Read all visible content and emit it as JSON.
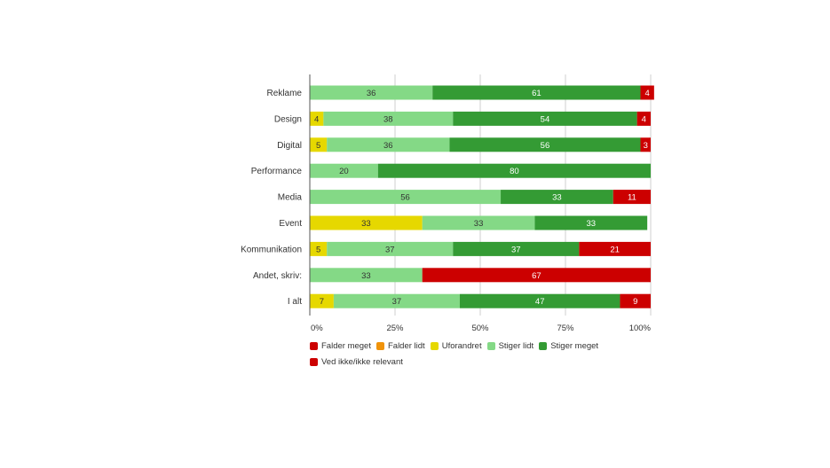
{
  "chart_data": {
    "type": "bar",
    "orientation": "horizontal",
    "stacked": true,
    "percent_stacked": true,
    "categories": [
      "Reklame",
      "Design",
      "Digital",
      "Performance",
      "Media",
      "Event",
      "Kommunikation",
      "Andet, skriv:",
      "I alt"
    ],
    "series": [
      {
        "name": "Falder meget",
        "color": "#cc0000",
        "values": [
          0,
          0,
          0,
          0,
          0,
          0,
          0,
          0,
          0
        ]
      },
      {
        "name": "Falder lidt",
        "color": "#f0930a",
        "values": [
          0,
          0,
          0,
          0,
          0,
          0,
          0,
          0,
          0
        ]
      },
      {
        "name": "Uforandret",
        "color": "#e6d800",
        "values": [
          0,
          4,
          5,
          0,
          0,
          33,
          5,
          0,
          7
        ]
      },
      {
        "name": "Stiger lidt",
        "color": "#84d986",
        "values": [
          36,
          38,
          36,
          20,
          56,
          33,
          37,
          33,
          37
        ]
      },
      {
        "name": "Stiger meget",
        "color": "#349b34",
        "values": [
          61,
          54,
          56,
          80,
          33,
          33,
          37,
          0,
          47
        ]
      },
      {
        "name": "Ved ikke/ikke relevant",
        "color": "#cc0000",
        "values": [
          4,
          4,
          3,
          0,
          11,
          0,
          21,
          67,
          9
        ]
      }
    ],
    "label_colors": [
      "#ffffff",
      "#ffffff",
      "#333333",
      "#333333",
      "#ffffff",
      "#ffffff"
    ],
    "xticks": [
      "0%",
      "25%",
      "50%",
      "75%",
      "100%"
    ],
    "xlim": [
      0,
      100
    ],
    "grid": true,
    "legend_position": "bottom",
    "title": "",
    "xlabel": "",
    "ylabel": ""
  }
}
